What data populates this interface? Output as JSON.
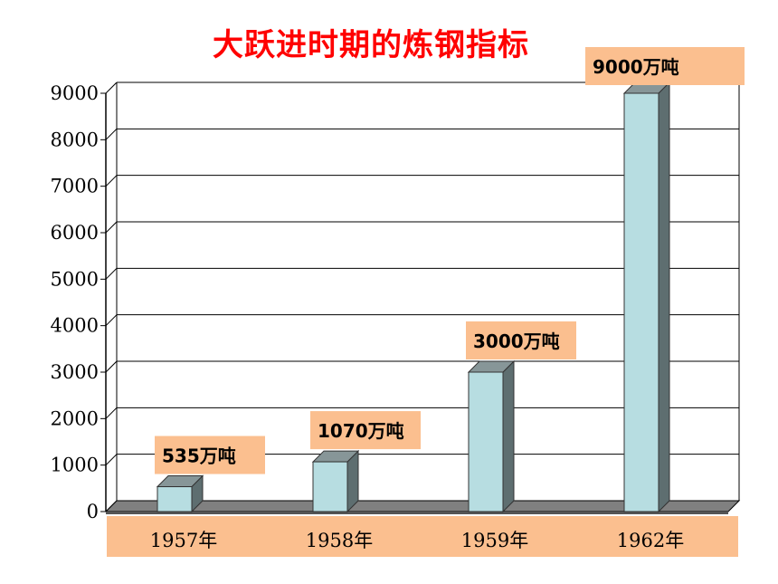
{
  "chart_data": {
    "type": "bar",
    "title": "大跃进时期的炼钢指标",
    "categories": [
      "1957年",
      "1958年",
      "1959年",
      "1962年"
    ],
    "values": [
      535,
      1070,
      3000,
      9000
    ],
    "data_labels": [
      "535万吨",
      "1070万吨",
      "3000万吨",
      "9000万吨"
    ],
    "ylim": [
      0,
      9000
    ],
    "yticks": [
      "0",
      "1000",
      "2000",
      "3000",
      "4000",
      "5000",
      "6000",
      "7000",
      "8000",
      "9000"
    ],
    "grid": true,
    "legend": "none",
    "colors": {
      "title": "#ff0000",
      "bar_front": "#b7dde1",
      "bar_side": "#5e6e70",
      "bar_top": "#879698",
      "label_box": "#fbbf8f",
      "floor": "#808080"
    }
  }
}
